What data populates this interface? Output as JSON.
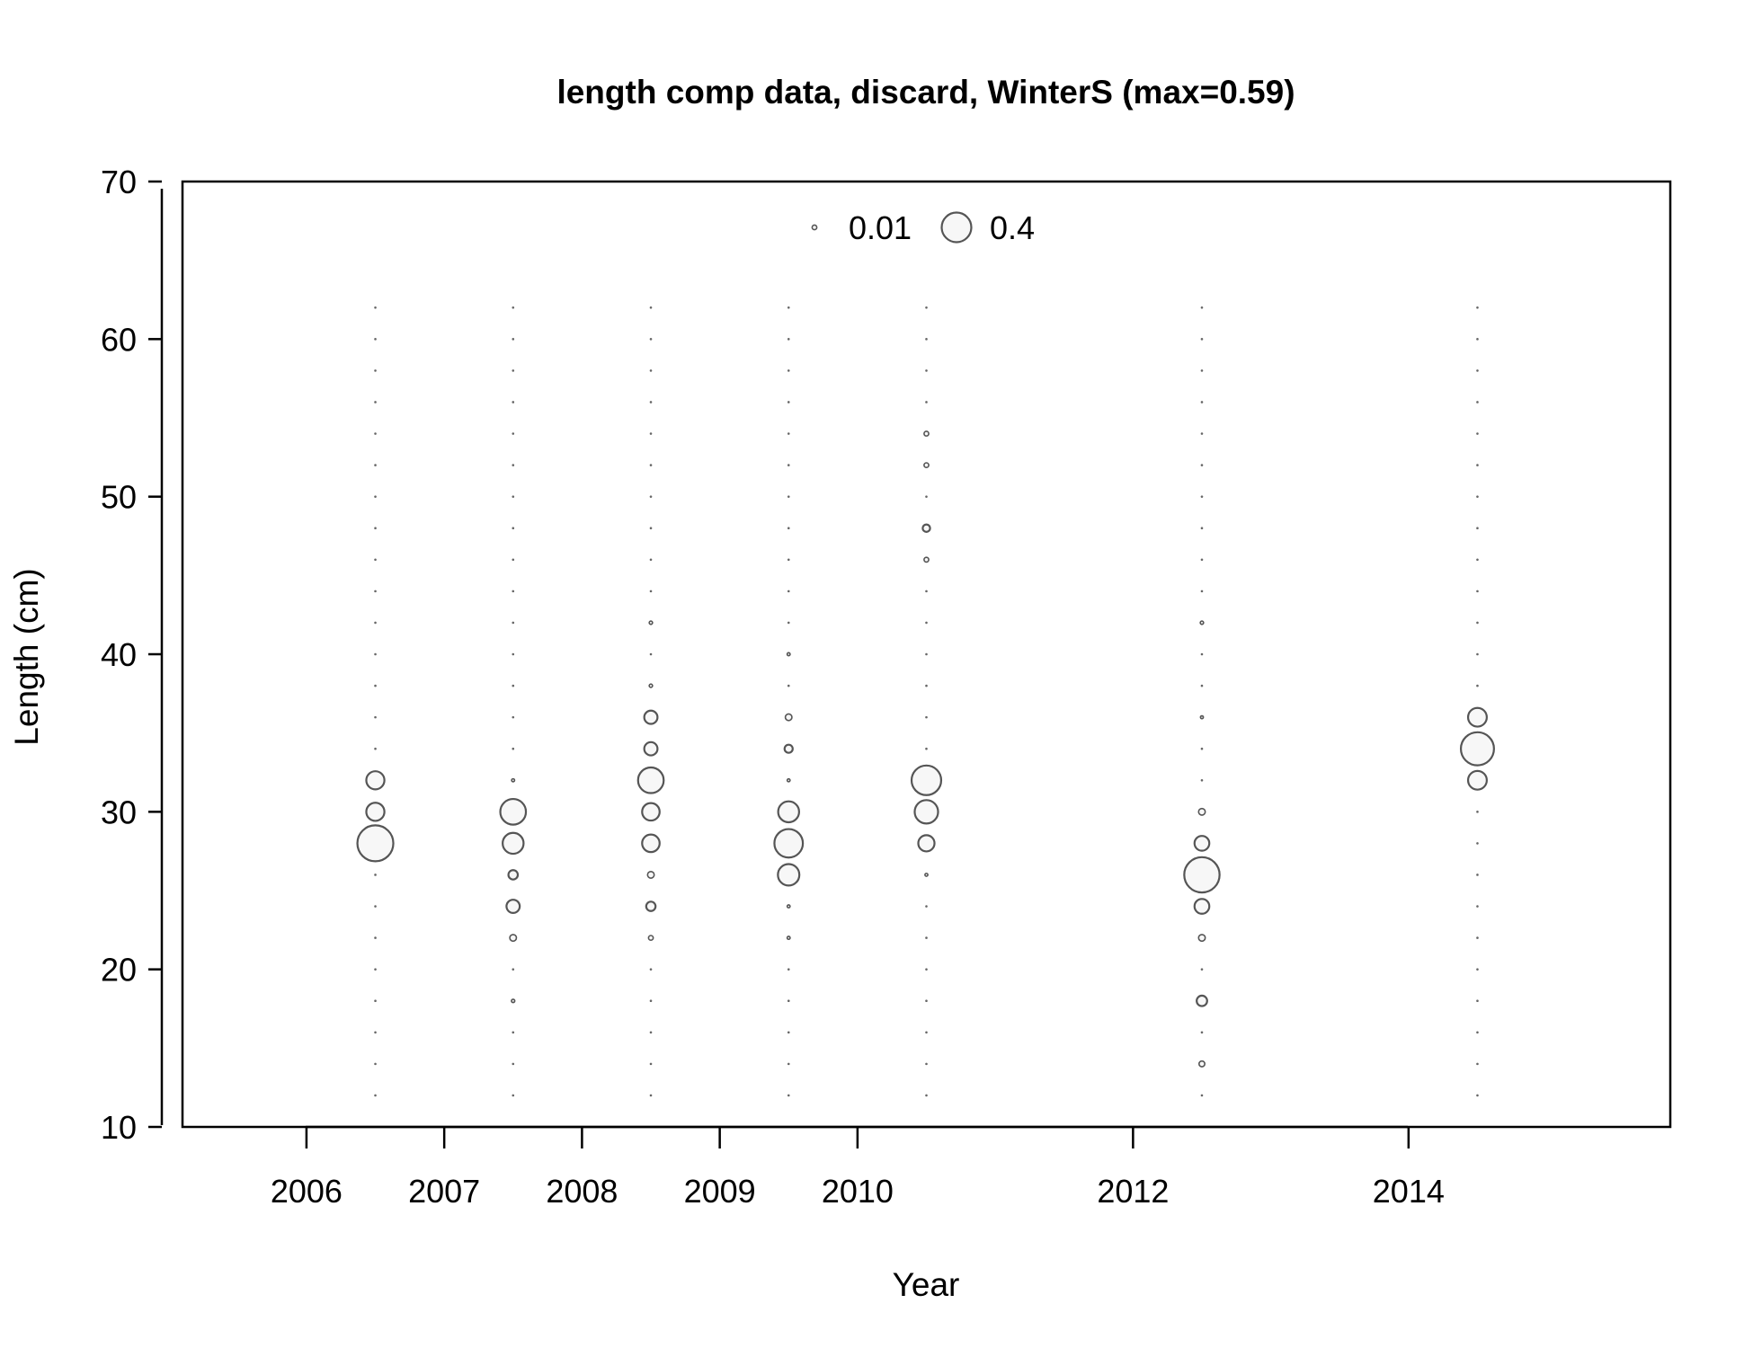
{
  "chart_data": {
    "type": "scatter",
    "subtype": "bubble",
    "title": "length comp data, discard, WinterS (max=0.59)",
    "xlabel": "Year",
    "ylabel": "Length (cm)",
    "xlim": [
      2005.1,
      2015.9
    ],
    "ylim": [
      10,
      70
    ],
    "x_ticks": [
      2006,
      2007,
      2008,
      2009,
      2010,
      2012,
      2014
    ],
    "y_ticks": [
      10,
      20,
      30,
      40,
      50,
      60,
      70
    ],
    "legend": {
      "placement": "top-center",
      "entries": [
        {
          "label": "0.01",
          "value": 0.01
        },
        {
          "label": "0.4",
          "value": 0.4
        }
      ]
    },
    "grid": false,
    "colors": {
      "bubble_stroke": "#555555",
      "bubble_fill": "#f7f7f7"
    },
    "bins": [
      12,
      14,
      16,
      18,
      20,
      22,
      24,
      26,
      28,
      30,
      32,
      34,
      36,
      38,
      40,
      42,
      44,
      46,
      48,
      50,
      52,
      54,
      56,
      58,
      60,
      62
    ],
    "series": [
      {
        "x": 2006.5,
        "values": {
          "28": 0.59,
          "30": 0.15,
          "32": 0.15
        }
      },
      {
        "x": 2007.5,
        "values": {
          "18": 0.005,
          "22": 0.02,
          "24": 0.08,
          "26": 0.04,
          "28": 0.2,
          "30": 0.3,
          "32": 0.004
        }
      },
      {
        "x": 2008.5,
        "values": {
          "22": 0.01,
          "24": 0.04,
          "26": 0.02,
          "28": 0.14,
          "30": 0.14,
          "32": 0.3,
          "34": 0.08,
          "36": 0.08,
          "38": 0.005,
          "42": 0.005
        }
      },
      {
        "x": 2009.5,
        "values": {
          "22": 0.004,
          "24": 0.002,
          "26": 0.21,
          "28": 0.37,
          "30": 0.2,
          "32": 0.002,
          "34": 0.03,
          "36": 0.02,
          "40": 0.004
        }
      },
      {
        "x": 2010.5,
        "values": {
          "26": 0.002,
          "28": 0.12,
          "30": 0.25,
          "32": 0.4,
          "46": 0.01,
          "48": 0.025,
          "52": 0.01,
          "54": 0.01
        }
      },
      {
        "x": 2012.5,
        "values": {
          "14": 0.015,
          "18": 0.05,
          "22": 0.02,
          "24": 0.1,
          "26": 0.57,
          "28": 0.1,
          "30": 0.02,
          "36": 0.003,
          "42": 0.005
        }
      },
      {
        "x": 2014.5,
        "values": {
          "32": 0.16,
          "34": 0.5,
          "36": 0.16
        }
      }
    ]
  }
}
